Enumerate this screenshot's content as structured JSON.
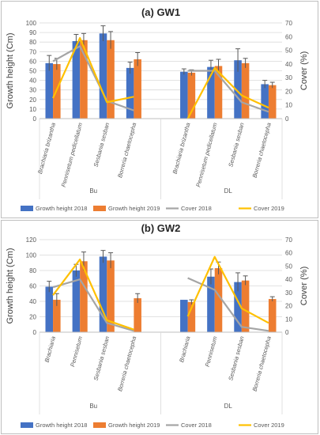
{
  "colors": {
    "growth_2018": "#4472C4",
    "growth_2019": "#ED7D31",
    "cover_2018": "#A5A5A5",
    "cover_2019": "#FFC000",
    "gridline": "#D9D9D9",
    "axis_text": "#595959",
    "error_bar": "#595959"
  },
  "chart_data": [
    {
      "type": "bar",
      "title": "(a) GW1",
      "ylabel": "Growth height (Cm)",
      "y2label": "Cover (%)",
      "ylim": [
        0,
        100
      ],
      "yticks": [
        0,
        10,
        20,
        30,
        40,
        50,
        60,
        70,
        80,
        90,
        100
      ],
      "y2lim": [
        0,
        70
      ],
      "y2ticks": [
        0,
        10,
        20,
        30,
        40,
        50,
        60,
        70
      ],
      "groups": [
        {
          "name": "Bu",
          "categories": [
            "Brachiaria brizantha",
            "Pennisetum pedicellatum",
            "Sesbania sesban",
            "Borreria chaetocepha"
          ]
        },
        {
          "name": "DL",
          "categories": [
            "Brachiaria brizantha",
            "Pennisetum pedicellatum",
            "Sesbania sesban",
            "Borreria chaetocepha"
          ]
        }
      ],
      "series": [
        {
          "name": "Growth height 2018",
          "kind": "bar",
          "axis": "left",
          "color": "#4472C4",
          "values": [
            58,
            81,
            89,
            53,
            49,
            54,
            61,
            36
          ],
          "errors": [
            8,
            7,
            8,
            6,
            3,
            7,
            12,
            4
          ]
        },
        {
          "name": "Growth height 2019",
          "kind": "bar",
          "axis": "left",
          "color": "#ED7D31",
          "values": [
            57,
            82,
            82,
            62,
            48,
            55,
            58,
            35
          ],
          "errors": [
            6,
            7,
            9,
            7,
            3,
            7,
            5,
            3
          ]
        },
        {
          "name": "Cover 2018",
          "kind": "line",
          "axis": "right",
          "color": "#A5A5A5",
          "values": [
            42,
            53,
            13,
            6,
            35,
            35,
            12,
            5
          ]
        },
        {
          "name": "Cover 2019",
          "kind": "line",
          "axis": "right",
          "color": "#FFC000",
          "values": [
            15,
            59,
            12,
            16,
            0,
            37,
            17,
            8
          ]
        }
      ],
      "grid": true,
      "legend": "bottom"
    },
    {
      "type": "bar",
      "title": "(b) GW2",
      "ylabel": "Growth height (Cm)",
      "y2label": "Cover (%)",
      "ylim": [
        0,
        120
      ],
      "yticks": [
        0,
        20,
        40,
        60,
        80,
        100,
        120
      ],
      "y2lim": [
        0,
        70
      ],
      "y2ticks": [
        0,
        10,
        20,
        30,
        40,
        50,
        60,
        70
      ],
      "groups": [
        {
          "name": "Bu",
          "categories": [
            "Brachiaria",
            "Pennisetum",
            "Sesbania sesban",
            "Borreria chaetocepha"
          ]
        },
        {
          "name": "DL",
          "categories": [
            "Brachiaria",
            "Pennisetum",
            "Sesbania sesban",
            "Borreria chaetocepha"
          ]
        }
      ],
      "series": [
        {
          "name": "Growth height 2018",
          "kind": "bar",
          "axis": "left",
          "color": "#4472C4",
          "values": [
            59,
            80,
            98,
            0,
            42,
            72,
            65,
            0
          ],
          "errors": [
            7,
            8,
            8,
            0,
            0,
            10,
            12,
            0
          ]
        },
        {
          "name": "Growth height 2019",
          "kind": "bar",
          "axis": "left",
          "color": "#ED7D31",
          "values": [
            42,
            92,
            93,
            44,
            39,
            83,
            67,
            43
          ],
          "errors": [
            8,
            12,
            10,
            6,
            3,
            8,
            6,
            3
          ]
        },
        {
          "name": "Cover 2018",
          "kind": "line",
          "axis": "right",
          "color": "#A5A5A5",
          "values": [
            34,
            40,
            7,
            1,
            41,
            32,
            4,
            1
          ]
        },
        {
          "name": "Cover 2019",
          "kind": "line",
          "axis": "right",
          "color": "#FFC000",
          "values": [
            28,
            55,
            9,
            2,
            12,
            57,
            18,
            7
          ]
        }
      ],
      "grid": true,
      "legend": "bottom"
    }
  ]
}
